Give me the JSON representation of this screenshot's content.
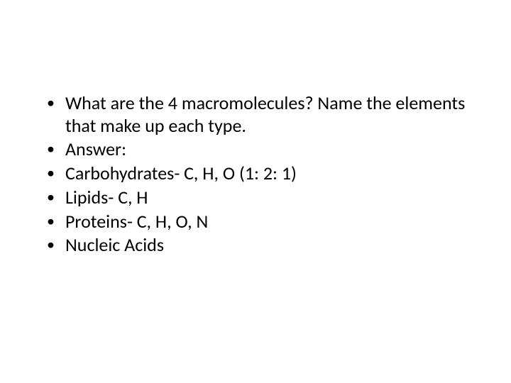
{
  "slide": {
    "bullets": [
      "What are the 4 macromolecules?  Name the elements that make up each type.",
      "Answer:",
      "Carbohydrates- C, H, O (1: 2: 1)",
      "Lipids- C, H",
      "Proteins- C, H, O, N",
      "Nucleic Acids"
    ],
    "text_color": "#000000",
    "background_color": "#ffffff",
    "font_size_pt": 20
  }
}
